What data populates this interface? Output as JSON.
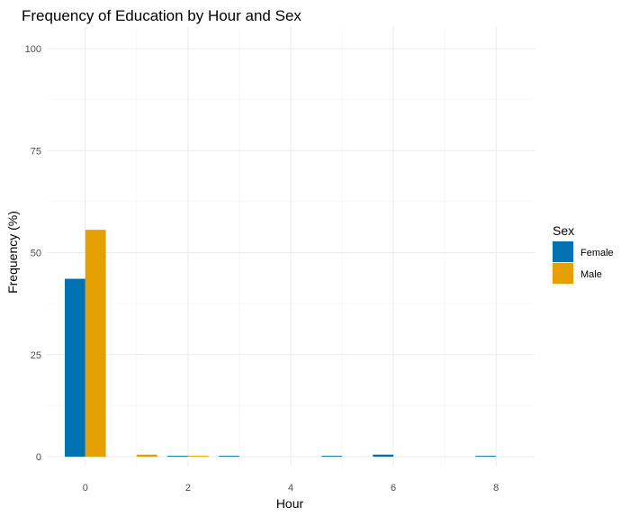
{
  "chart_data": {
    "type": "bar",
    "title": "Frequency of Education by Hour and Sex",
    "xlabel": "Hour",
    "ylabel": "Frequency (%)",
    "xlim": [
      -0.75,
      8.75
    ],
    "ylim": [
      0,
      100
    ],
    "x_ticks": [
      0,
      2,
      4,
      6,
      8
    ],
    "y_ticks": [
      0,
      25,
      50,
      75,
      100
    ],
    "grid": true,
    "legend": {
      "title": "Sex",
      "position": "right"
    },
    "bar_width_hours": 0.8,
    "series": [
      {
        "name": "Female",
        "color": "#0072B2",
        "points": [
          {
            "x": 0,
            "y": 43.6
          },
          {
            "x": 2,
            "y": 0.2
          },
          {
            "x": 3,
            "y": 0.2
          },
          {
            "x": 5,
            "y": 0.2
          },
          {
            "x": 6,
            "y": 0.5
          },
          {
            "x": 8,
            "y": 0.2
          }
        ]
      },
      {
        "name": "Male",
        "color": "#E69F00",
        "points": [
          {
            "x": 0,
            "y": 55.6
          },
          {
            "x": 1,
            "y": 0.5
          },
          {
            "x": 2,
            "y": 0.2
          }
        ]
      }
    ]
  }
}
